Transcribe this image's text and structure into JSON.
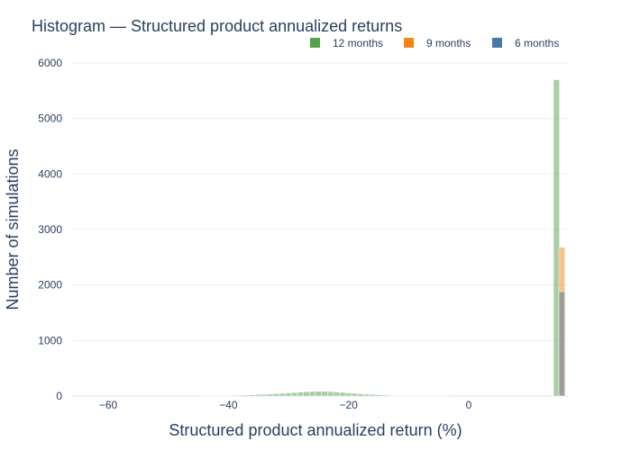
{
  "chart_data": {
    "type": "bar",
    "title": "Histogram — Structured product annualized returns",
    "xlabel": "Structured product annualized return (%)",
    "ylabel": "Number of simulations",
    "xlim": [
      -66,
      16.5
    ],
    "ylim": [
      0,
      6000
    ],
    "x_ticks": [
      "−60",
      "−40",
      "−20",
      "0"
    ],
    "y_ticks": [
      "0",
      "1000",
      "2000",
      "3000",
      "4000",
      "5000",
      "6000"
    ],
    "grid": true,
    "barmode": "overlay",
    "legend_position": "top-right",
    "series": [
      {
        "name": "12 months",
        "color": "#54a24b",
        "opacity": 0.5,
        "bins": [
          [
            -45.0,
            2
          ],
          [
            -44.0,
            3
          ],
          [
            -43.0,
            4
          ],
          [
            -42.0,
            5
          ],
          [
            -41.0,
            7
          ],
          [
            -40.0,
            9
          ],
          [
            -39.0,
            12
          ],
          [
            -38.0,
            15
          ],
          [
            -37.0,
            18
          ],
          [
            -36.0,
            22
          ],
          [
            -35.0,
            26
          ],
          [
            -34.0,
            31
          ],
          [
            -33.0,
            36
          ],
          [
            -32.0,
            42
          ],
          [
            -31.0,
            48
          ],
          [
            -30.0,
            55
          ],
          [
            -29.0,
            62
          ],
          [
            -28.0,
            70
          ],
          [
            -27.0,
            76
          ],
          [
            -26.0,
            82
          ],
          [
            -25.0,
            86
          ],
          [
            -24.0,
            84
          ],
          [
            -23.0,
            80
          ],
          [
            -22.0,
            72
          ],
          [
            -21.0,
            65
          ],
          [
            -20.0,
            55
          ],
          [
            -19.0,
            48
          ],
          [
            -18.0,
            40
          ],
          [
            -17.0,
            33
          ],
          [
            -16.0,
            27
          ],
          [
            -15.0,
            22
          ],
          [
            -14.0,
            17
          ],
          [
            -13.0,
            13
          ],
          [
            -12.0,
            10
          ],
          [
            -11.0,
            8
          ],
          [
            -10.0,
            6
          ],
          [
            -9.0,
            5
          ],
          [
            -8.0,
            4
          ],
          [
            -7.0,
            3
          ],
          [
            -6.0,
            3
          ],
          [
            -5.0,
            2
          ],
          [
            -4.0,
            2
          ],
          [
            -3.0,
            1
          ],
          [
            14.6,
            5700
          ]
        ]
      },
      {
        "name": "9 months",
        "color": "#f58518",
        "opacity": 0.5,
        "bins": [
          [
            15.5,
            2680
          ]
        ]
      },
      {
        "name": "6 months",
        "color": "#4c78a8",
        "opacity": 0.5,
        "bins": [
          [
            15.5,
            1880
          ]
        ]
      }
    ]
  }
}
